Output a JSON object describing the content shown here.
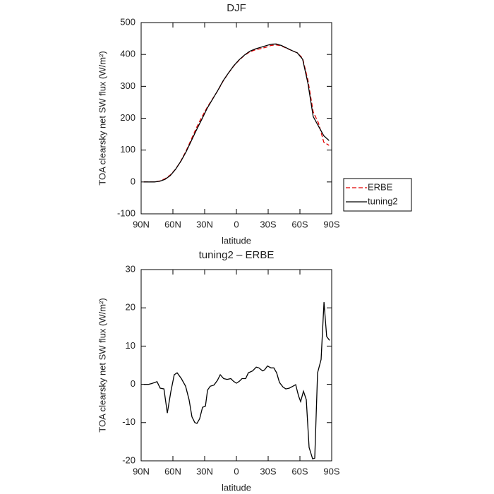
{
  "chart_data": [
    {
      "type": "line",
      "title": "DJF",
      "xlabel": "latitude",
      "ylabel": "TOA clearsky net SW flux (W/m²)",
      "x": [
        87.5,
        82.5,
        77.5,
        72.5,
        67.5,
        62.5,
        57.5,
        52.5,
        47.5,
        42.5,
        37.5,
        32.5,
        27.5,
        22.5,
        17.5,
        12.5,
        7.5,
        2.5,
        -2.5,
        -7.5,
        -12.5,
        -17.5,
        -22.5,
        -27.5,
        -32.5,
        -37.5,
        -42.5,
        -47.5,
        -52.5,
        -57.5,
        -62.5,
        -67.5,
        -72.5,
        -77.5,
        -82.5,
        -87.5
      ],
      "series": [
        {
          "name": "ERBE",
          "color": "#e00000",
          "linestyle": "dashed",
          "values": [
            0,
            0,
            0,
            3,
            10,
            22,
            40,
            66,
            98,
            135,
            172,
            205,
            235,
            261,
            287,
            317,
            342,
            364,
            382,
            397,
            408,
            414,
            418,
            422,
            428,
            430,
            427,
            419,
            412,
            405,
            388,
            320,
            220,
            185,
            125,
            115
          ]
        },
        {
          "name": "tuning2",
          "color": "#000000",
          "linestyle": "solid",
          "values": [
            0,
            0,
            0,
            2,
            8,
            20,
            40,
            65,
            95,
            130,
            165,
            198,
            232,
            260,
            288,
            318,
            342,
            365,
            383,
            398,
            410,
            417,
            422,
            427,
            432,
            433,
            428,
            420,
            412,
            405,
            385,
            310,
            205,
            175,
            145,
            130
          ]
        }
      ],
      "xlim": [
        90,
        -90
      ],
      "xticks": [
        {
          "value": 90,
          "label": "90N"
        },
        {
          "value": 60,
          "label": "60N"
        },
        {
          "value": 30,
          "label": "30N"
        },
        0,
        {
          "value": -30,
          "label": "30S"
        },
        {
          "value": -60,
          "label": "60S"
        },
        {
          "value": -90,
          "label": "90S"
        }
      ],
      "ylim": [
        -100,
        500
      ],
      "yticks": [
        -100,
        0,
        100,
        200,
        300,
        400,
        500
      ],
      "grid": false,
      "legend": "outside-right"
    },
    {
      "type": "line",
      "title": "tuning2 – ERBE",
      "xlabel": "latitude",
      "ylabel": "TOA clearsky net SW flux (W/m²)",
      "color": "#000000",
      "x": [
        87.5,
        83,
        80,
        75,
        72,
        68.5,
        65.3,
        62,
        58.7,
        56,
        52,
        48,
        44.7,
        42,
        39.3,
        37.3,
        34.7,
        32,
        29.3,
        27.3,
        24.7,
        21.3,
        18,
        15.3,
        12,
        8.7,
        5.3,
        2.7,
        0,
        -2.7,
        -5.3,
        -8.7,
        -11.3,
        -15.3,
        -18.7,
        -21.3,
        -24.7,
        -26.7,
        -29.3,
        -32.7,
        -35.3,
        -38,
        -40.7,
        -44,
        -46.7,
        -50,
        -53.3,
        -56,
        -58.7,
        -60.7,
        -63.3,
        -66,
        -68.7,
        -72,
        -74,
        -76.7,
        -80,
        -82.7,
        -85.3,
        -88
      ],
      "values": [
        0,
        0,
        0.2,
        0.7,
        -1,
        -1.2,
        -7.5,
        -2,
        2.5,
        3,
        1.5,
        -0.5,
        -4,
        -8.5,
        -10,
        -10.2,
        -9,
        -6,
        -5.7,
        -1.5,
        -0.5,
        -0.2,
        1,
        2.5,
        1.5,
        1.3,
        1.5,
        0.8,
        0.3,
        0.8,
        1.5,
        1.5,
        3,
        3.5,
        4.5,
        4.3,
        3.5,
        3.8,
        4.8,
        4.3,
        4.3,
        3,
        0.5,
        -0.7,
        -1.2,
        -1,
        -0.5,
        -0.1,
        -3,
        -4.5,
        -1.8,
        -4,
        -16.5,
        -19.5,
        -19.3,
        3,
        6.5,
        21.5,
        12.5,
        11.5
      ],
      "xlim": [
        90,
        -90
      ],
      "xticks": [
        {
          "value": 90,
          "label": "90N"
        },
        {
          "value": 60,
          "label": "60N"
        },
        {
          "value": 30,
          "label": "30N"
        },
        0,
        {
          "value": -30,
          "label": "30S"
        },
        {
          "value": -60,
          "label": "60S"
        },
        {
          "value": -90,
          "label": "90S"
        }
      ],
      "ylim": [
        -20,
        30
      ],
      "yticks": [
        -20,
        -10,
        0,
        10,
        20,
        30
      ],
      "grid": false
    }
  ]
}
